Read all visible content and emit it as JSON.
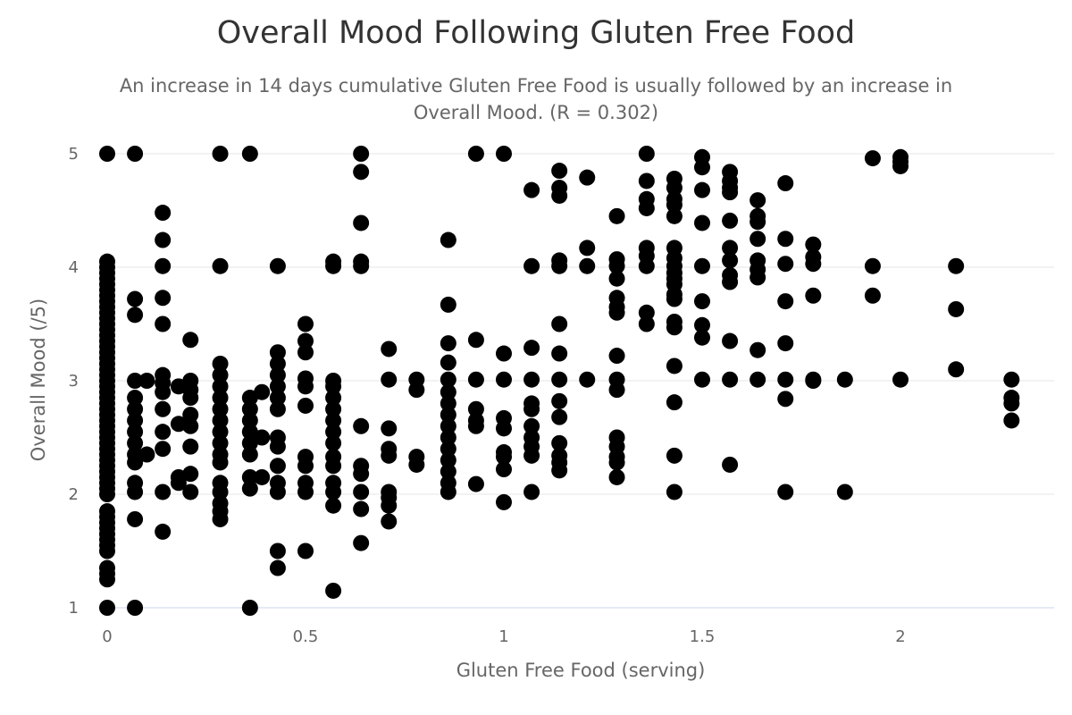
{
  "chart_data": {
    "type": "scatter",
    "title": "Overall Mood Following Gluten Free Food",
    "subtitle_lines": [
      "An increase in 14 days cumulative Gluten Free Food is usually followed by an increase in",
      "Overall Mood. (R = 0.302)"
    ],
    "xlabel": "Gluten Free Food (serving)",
    "ylabel": "Overall Mood (/5)",
    "xlim": [
      -0.02,
      2.4
    ],
    "ylim": [
      1,
      5
    ],
    "x_ticks": [
      "0",
      "0.5",
      "1",
      "1.5",
      "2"
    ],
    "y_ticks": [
      "1",
      "2",
      "3",
      "4",
      "5"
    ],
    "grid": true,
    "legend": "none",
    "point_color": "#000000",
    "points": [
      [
        0,
        5
      ],
      [
        0,
        4.05
      ],
      [
        0,
        4
      ],
      [
        0,
        3.95
      ],
      [
        0,
        3.9
      ],
      [
        0,
        3.85
      ],
      [
        0,
        3.8
      ],
      [
        0,
        3.75
      ],
      [
        0,
        3.7
      ],
      [
        0,
        3.65
      ],
      [
        0,
        3.6
      ],
      [
        0,
        3.55
      ],
      [
        0,
        3.5
      ],
      [
        0,
        3.45
      ],
      [
        0,
        3.4
      ],
      [
        0,
        3.35
      ],
      [
        0,
        3.3
      ],
      [
        0,
        3.25
      ],
      [
        0,
        3.2
      ],
      [
        0,
        3.15
      ],
      [
        0,
        3.1
      ],
      [
        0,
        3.05
      ],
      [
        0,
        3
      ],
      [
        0,
        2.95
      ],
      [
        0,
        2.9
      ],
      [
        0,
        2.85
      ],
      [
        0,
        2.8
      ],
      [
        0,
        2.75
      ],
      [
        0,
        2.7
      ],
      [
        0,
        2.65
      ],
      [
        0,
        2.6
      ],
      [
        0,
        2.55
      ],
      [
        0,
        2.5
      ],
      [
        0,
        2.45
      ],
      [
        0,
        2.4
      ],
      [
        0,
        2.35
      ],
      [
        0,
        2.3
      ],
      [
        0,
        2.25
      ],
      [
        0,
        2.2
      ],
      [
        0,
        2.15
      ],
      [
        0,
        2.1
      ],
      [
        0,
        2.05
      ],
      [
        0,
        2
      ],
      [
        0,
        1.85
      ],
      [
        0,
        1.8
      ],
      [
        0,
        1.75
      ],
      [
        0,
        1.7
      ],
      [
        0,
        1.65
      ],
      [
        0,
        1.6
      ],
      [
        0,
        1.55
      ],
      [
        0,
        1.5
      ],
      [
        0,
        1.35
      ],
      [
        0,
        1.3
      ],
      [
        0,
        1.25
      ],
      [
        0,
        1
      ],
      [
        0.07,
        5
      ],
      [
        0.07,
        3.72
      ],
      [
        0.07,
        3.58
      ],
      [
        0.07,
        3
      ],
      [
        0.07,
        2.85
      ],
      [
        0.07,
        2.75
      ],
      [
        0.07,
        2.65
      ],
      [
        0.07,
        2.55
      ],
      [
        0.07,
        2.45
      ],
      [
        0.07,
        2.35
      ],
      [
        0.07,
        2.28
      ],
      [
        0.07,
        2.1
      ],
      [
        0.07,
        2.02
      ],
      [
        0.07,
        1.78
      ],
      [
        0.07,
        1
      ],
      [
        0.1,
        3
      ],
      [
        0.1,
        2.35
      ],
      [
        0.14,
        4.48
      ],
      [
        0.14,
        4.24
      ],
      [
        0.14,
        4.01
      ],
      [
        0.14,
        3.73
      ],
      [
        0.14,
        3.5
      ],
      [
        0.14,
        3.05
      ],
      [
        0.14,
        2.98
      ],
      [
        0.14,
        2.9
      ],
      [
        0.14,
        2.75
      ],
      [
        0.14,
        2.55
      ],
      [
        0.14,
        2.4
      ],
      [
        0.14,
        2.02
      ],
      [
        0.14,
        1.67
      ],
      [
        0.18,
        2.95
      ],
      [
        0.18,
        2.62
      ],
      [
        0.18,
        2.15
      ],
      [
        0.18,
        2.1
      ],
      [
        0.21,
        3.36
      ],
      [
        0.21,
        3
      ],
      [
        0.21,
        2.92
      ],
      [
        0.21,
        2.85
      ],
      [
        0.21,
        2.7
      ],
      [
        0.21,
        2.6
      ],
      [
        0.21,
        2.42
      ],
      [
        0.21,
        2.18
      ],
      [
        0.21,
        2.02
      ],
      [
        0.285,
        5
      ],
      [
        0.285,
        4.01
      ],
      [
        0.285,
        3.15
      ],
      [
        0.285,
        3.05
      ],
      [
        0.285,
        2.95
      ],
      [
        0.285,
        2.85
      ],
      [
        0.285,
        2.75
      ],
      [
        0.285,
        2.65
      ],
      [
        0.285,
        2.55
      ],
      [
        0.285,
        2.45
      ],
      [
        0.285,
        2.35
      ],
      [
        0.285,
        2.28
      ],
      [
        0.285,
        2.1
      ],
      [
        0.285,
        2.02
      ],
      [
        0.285,
        1.92
      ],
      [
        0.285,
        1.85
      ],
      [
        0.285,
        1.78
      ],
      [
        0.36,
        5
      ],
      [
        0.36,
        2.85
      ],
      [
        0.36,
        2.75
      ],
      [
        0.36,
        2.65
      ],
      [
        0.36,
        2.55
      ],
      [
        0.36,
        2.45
      ],
      [
        0.36,
        2.35
      ],
      [
        0.36,
        2.15
      ],
      [
        0.36,
        2.05
      ],
      [
        0.36,
        1
      ],
      [
        0.39,
        2.9
      ],
      [
        0.39,
        2.5
      ],
      [
        0.39,
        2.15
      ],
      [
        0.43,
        4.01
      ],
      [
        0.43,
        3.25
      ],
      [
        0.43,
        3.15
      ],
      [
        0.43,
        3.05
      ],
      [
        0.43,
        2.95
      ],
      [
        0.43,
        2.85
      ],
      [
        0.43,
        2.75
      ],
      [
        0.43,
        2.5
      ],
      [
        0.43,
        2.42
      ],
      [
        0.43,
        2.25
      ],
      [
        0.43,
        2.1
      ],
      [
        0.43,
        2.02
      ],
      [
        0.43,
        1.5
      ],
      [
        0.43,
        1.35
      ],
      [
        0.5,
        3.5
      ],
      [
        0.5,
        3.35
      ],
      [
        0.5,
        3.25
      ],
      [
        0.5,
        3.02
      ],
      [
        0.5,
        2.95
      ],
      [
        0.5,
        2.78
      ],
      [
        0.5,
        2.33
      ],
      [
        0.5,
        2.25
      ],
      [
        0.5,
        2.1
      ],
      [
        0.5,
        2.02
      ],
      [
        0.5,
        1.5
      ],
      [
        0.57,
        4.05
      ],
      [
        0.57,
        4.01
      ],
      [
        0.57,
        3
      ],
      [
        0.57,
        2.95
      ],
      [
        0.57,
        2.85
      ],
      [
        0.57,
        2.75
      ],
      [
        0.57,
        2.65
      ],
      [
        0.57,
        2.55
      ],
      [
        0.57,
        2.45
      ],
      [
        0.57,
        2.33
      ],
      [
        0.57,
        2.25
      ],
      [
        0.57,
        2.1
      ],
      [
        0.57,
        2.02
      ],
      [
        0.57,
        1.9
      ],
      [
        0.57,
        1.15
      ],
      [
        0.64,
        5
      ],
      [
        0.64,
        4.84
      ],
      [
        0.64,
        4.39
      ],
      [
        0.64,
        4.05
      ],
      [
        0.64,
        4.01
      ],
      [
        0.64,
        2.6
      ],
      [
        0.64,
        2.25
      ],
      [
        0.64,
        2.18
      ],
      [
        0.64,
        2.02
      ],
      [
        0.64,
        1.87
      ],
      [
        0.64,
        1.57
      ],
      [
        0.71,
        3.28
      ],
      [
        0.71,
        3.01
      ],
      [
        0.71,
        2.58
      ],
      [
        0.71,
        2.4
      ],
      [
        0.71,
        2.34
      ],
      [
        0.71,
        2.02
      ],
      [
        0.71,
        1.97
      ],
      [
        0.71,
        1.9
      ],
      [
        0.71,
        1.76
      ],
      [
        0.78,
        3.01
      ],
      [
        0.78,
        2.92
      ],
      [
        0.78,
        2.33
      ],
      [
        0.78,
        2.26
      ],
      [
        0.86,
        4.24
      ],
      [
        0.86,
        3.67
      ],
      [
        0.86,
        3.33
      ],
      [
        0.86,
        3.16
      ],
      [
        0.86,
        3.01
      ],
      [
        0.86,
        2.9
      ],
      [
        0.86,
        2.8
      ],
      [
        0.86,
        2.7
      ],
      [
        0.86,
        2.6
      ],
      [
        0.86,
        2.5
      ],
      [
        0.86,
        2.4
      ],
      [
        0.86,
        2.3
      ],
      [
        0.86,
        2.2
      ],
      [
        0.86,
        2.1
      ],
      [
        0.86,
        2.02
      ],
      [
        0.93,
        5
      ],
      [
        0.93,
        3.36
      ],
      [
        0.93,
        3.01
      ],
      [
        0.93,
        2.75
      ],
      [
        0.93,
        2.65
      ],
      [
        0.93,
        2.6
      ],
      [
        0.93,
        2.09
      ],
      [
        1,
        5
      ],
      [
        1,
        3.24
      ],
      [
        1,
        3.01
      ],
      [
        1,
        2.67
      ],
      [
        1,
        2.58
      ],
      [
        1,
        2.37
      ],
      [
        1,
        2.33
      ],
      [
        1,
        2.22
      ],
      [
        1,
        1.93
      ],
      [
        1.07,
        4.68
      ],
      [
        1.07,
        4.01
      ],
      [
        1.07,
        3.29
      ],
      [
        1.07,
        3.01
      ],
      [
        1.07,
        2.8
      ],
      [
        1.07,
        2.75
      ],
      [
        1.07,
        2.6
      ],
      [
        1.07,
        2.5
      ],
      [
        1.07,
        2.42
      ],
      [
        1.07,
        2.34
      ],
      [
        1.07,
        2.02
      ],
      [
        1.14,
        4.85
      ],
      [
        1.14,
        4.7
      ],
      [
        1.14,
        4.63
      ],
      [
        1.14,
        4.06
      ],
      [
        1.14,
        4.01
      ],
      [
        1.14,
        3.5
      ],
      [
        1.14,
        3.24
      ],
      [
        1.14,
        3.01
      ],
      [
        1.14,
        2.82
      ],
      [
        1.14,
        2.68
      ],
      [
        1.14,
        2.45
      ],
      [
        1.14,
        2.34
      ],
      [
        1.14,
        2.28
      ],
      [
        1.14,
        2.21
      ],
      [
        1.21,
        4.79
      ],
      [
        1.21,
        4.17
      ],
      [
        1.21,
        4.01
      ],
      [
        1.21,
        3.01
      ],
      [
        1.285,
        4.45
      ],
      [
        1.285,
        4.07
      ],
      [
        1.285,
        4.01
      ],
      [
        1.285,
        3.9
      ],
      [
        1.285,
        3.73
      ],
      [
        1.285,
        3.65
      ],
      [
        1.285,
        3.6
      ],
      [
        1.285,
        3.22
      ],
      [
        1.285,
        3.01
      ],
      [
        1.285,
        2.92
      ],
      [
        1.285,
        2.5
      ],
      [
        1.285,
        2.42
      ],
      [
        1.285,
        2.33
      ],
      [
        1.285,
        2.28
      ],
      [
        1.285,
        2.15
      ],
      [
        1.36,
        5
      ],
      [
        1.36,
        4.76
      ],
      [
        1.36,
        4.6
      ],
      [
        1.36,
        4.52
      ],
      [
        1.36,
        4.17
      ],
      [
        1.36,
        4.1
      ],
      [
        1.36,
        4.01
      ],
      [
        1.36,
        3.6
      ],
      [
        1.36,
        3.5
      ],
      [
        1.43,
        4.78
      ],
      [
        1.43,
        4.7
      ],
      [
        1.43,
        4.6
      ],
      [
        1.43,
        4.55
      ],
      [
        1.43,
        4.45
      ],
      [
        1.43,
        4.17
      ],
      [
        1.43,
        4.08
      ],
      [
        1.43,
        4.01
      ],
      [
        1.43,
        3.95
      ],
      [
        1.43,
        3.9
      ],
      [
        1.43,
        3.85
      ],
      [
        1.43,
        3.76
      ],
      [
        1.43,
        3.72
      ],
      [
        1.43,
        3.52
      ],
      [
        1.43,
        3.47
      ],
      [
        1.43,
        3.13
      ],
      [
        1.43,
        2.81
      ],
      [
        1.43,
        2.34
      ],
      [
        1.43,
        2.02
      ],
      [
        1.5,
        4.97
      ],
      [
        1.5,
        4.88
      ],
      [
        1.5,
        4.68
      ],
      [
        1.5,
        4.39
      ],
      [
        1.5,
        4.01
      ],
      [
        1.5,
        3.7
      ],
      [
        1.5,
        3.49
      ],
      [
        1.5,
        3.38
      ],
      [
        1.5,
        3.01
      ],
      [
        1.57,
        4.84
      ],
      [
        1.57,
        4.76
      ],
      [
        1.57,
        4.7
      ],
      [
        1.57,
        4.66
      ],
      [
        1.57,
        4.41
      ],
      [
        1.57,
        4.17
      ],
      [
        1.57,
        4.06
      ],
      [
        1.57,
        3.93
      ],
      [
        1.57,
        3.87
      ],
      [
        1.57,
        3.35
      ],
      [
        1.57,
        3.01
      ],
      [
        1.57,
        2.26
      ],
      [
        1.64,
        4.59
      ],
      [
        1.64,
        4.45
      ],
      [
        1.64,
        4.4
      ],
      [
        1.64,
        4.25
      ],
      [
        1.64,
        4.06
      ],
      [
        1.64,
        3.98
      ],
      [
        1.64,
        3.91
      ],
      [
        1.64,
        3.27
      ],
      [
        1.64,
        3.01
      ],
      [
        1.71,
        4.74
      ],
      [
        1.71,
        4.25
      ],
      [
        1.71,
        4.03
      ],
      [
        1.71,
        3.7
      ],
      [
        1.71,
        3.33
      ],
      [
        1.71,
        3.01
      ],
      [
        1.71,
        2.84
      ],
      [
        1.71,
        2.02
      ],
      [
        1.78,
        4.2
      ],
      [
        1.78,
        4.09
      ],
      [
        1.78,
        4.03
      ],
      [
        1.78,
        3.75
      ],
      [
        1.78,
        3.01
      ],
      [
        1.78,
        3
      ],
      [
        1.86,
        3.01
      ],
      [
        1.86,
        2.02
      ],
      [
        1.93,
        4.96
      ],
      [
        1.93,
        4.01
      ],
      [
        1.93,
        3.75
      ],
      [
        2,
        4.97
      ],
      [
        2,
        4.93
      ],
      [
        2,
        4.89
      ],
      [
        2,
        3.01
      ],
      [
        2.14,
        4.01
      ],
      [
        2.14,
        3.63
      ],
      [
        2.14,
        3.1
      ],
      [
        2.28,
        3.01
      ],
      [
        2.28,
        2.85
      ],
      [
        2.28,
        2.8
      ],
      [
        2.28,
        2.65
      ]
    ]
  }
}
